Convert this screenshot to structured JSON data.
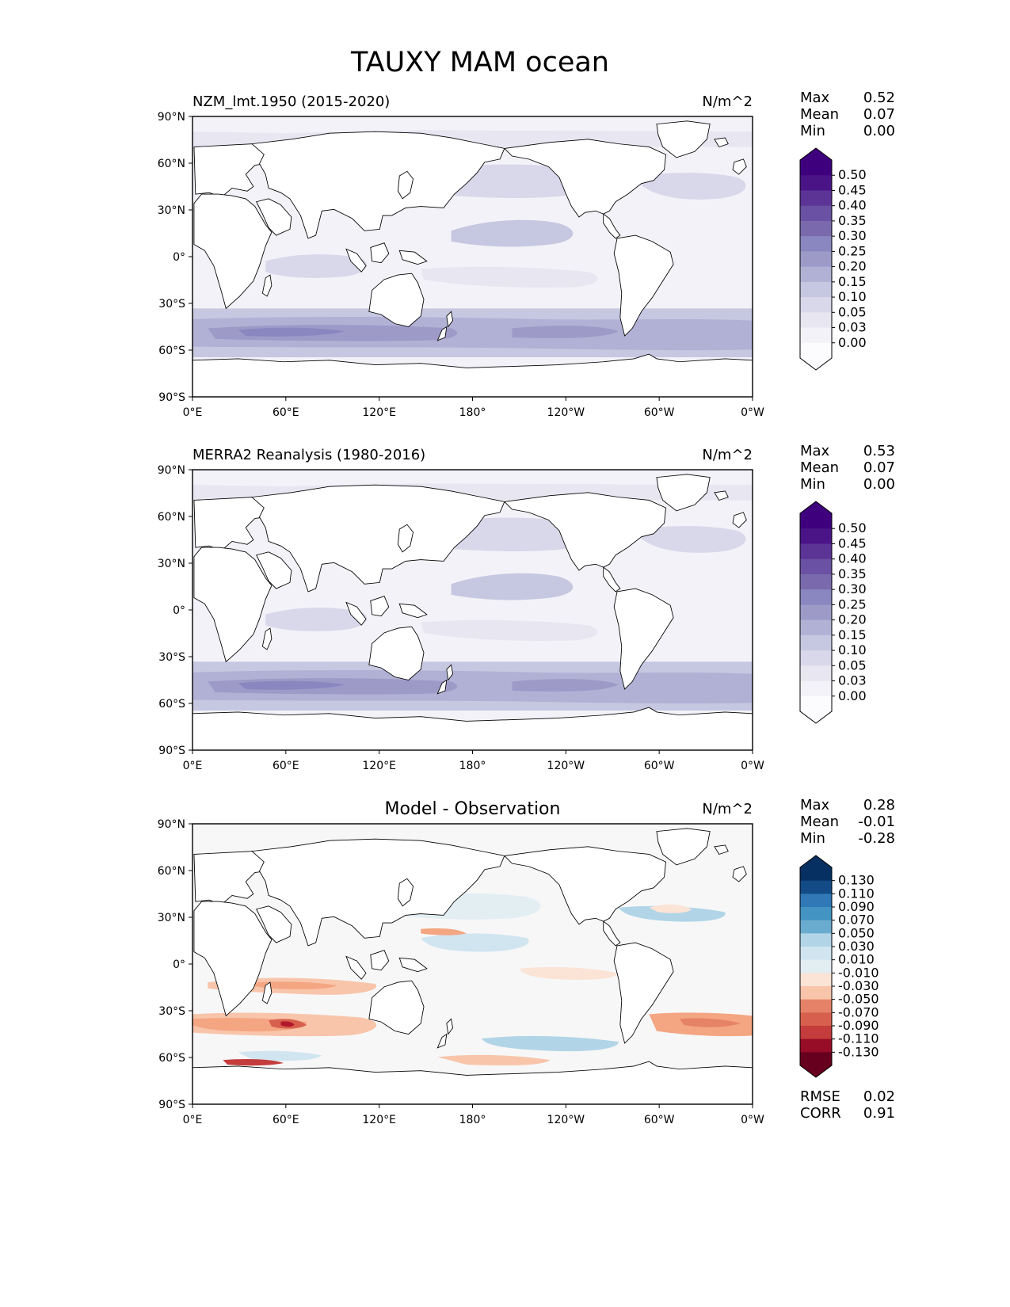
{
  "title": "TAUXY MAM ocean",
  "colors": {
    "land": "#ffffff",
    "coast": "#000000",
    "seq_cmap": [
      "#fcfbfd",
      "#f3f2f8",
      "#e7e6f1",
      "#d9d8ea",
      "#c6c7e1",
      "#b1b1d5",
      "#9e9ac8",
      "#8a86bf",
      "#7a6aad",
      "#6a51a3",
      "#5b3496",
      "#4a1486",
      "#3f007d"
    ],
    "div_cmap": [
      "#67001f",
      "#970c26",
      "#b2182b",
      "#c43c3c",
      "#d6604d",
      "#e58267",
      "#f4a582",
      "#f8c5ab",
      "#fbe3d6",
      "#f7f7f7",
      "#e3eef3",
      "#d1e5f0",
      "#b1d5e7",
      "#92c5de",
      "#6aaccf",
      "#4393c3",
      "#3079b6",
      "#2166ac",
      "#124b86",
      "#053061"
    ]
  },
  "panels": [
    {
      "id": "model",
      "label": "NZM_lmt.1950 (2015-2020)",
      "units": "N/m^2",
      "stats": [
        {
          "label": "Max",
          "value": "0.52"
        },
        {
          "label": "Mean",
          "value": "0.07"
        },
        {
          "label": "Min",
          "value": "0.00"
        }
      ],
      "colorbar": {
        "ticks": [
          "0.50",
          "0.45",
          "0.40",
          "0.35",
          "0.30",
          "0.25",
          "0.20",
          "0.15",
          "0.10",
          "0.05",
          "0.03",
          "0.00"
        ]
      }
    },
    {
      "id": "obs",
      "label": "MERRA2 Reanalysis (1980-2016)",
      "units": "N/m^2",
      "stats": [
        {
          "label": "Max",
          "value": "0.53"
        },
        {
          "label": "Mean",
          "value": "0.07"
        },
        {
          "label": "Min",
          "value": "0.00"
        }
      ],
      "colorbar": {
        "ticks": [
          "0.50",
          "0.45",
          "0.40",
          "0.35",
          "0.30",
          "0.25",
          "0.20",
          "0.15",
          "0.10",
          "0.05",
          "0.03",
          "0.00"
        ]
      }
    },
    {
      "id": "diff",
      "label": "Model - Observation",
      "units": "N/m^2",
      "stats": [
        {
          "label": "Max",
          "value": "0.28"
        },
        {
          "label": "Mean",
          "value": "-0.01"
        },
        {
          "label": "Min",
          "value": "-0.28"
        }
      ],
      "colorbar": {
        "ticks": [
          "0.130",
          "0.110",
          "0.090",
          "0.070",
          "0.050",
          "0.030",
          "0.010",
          "-0.010",
          "-0.030",
          "-0.050",
          "-0.070",
          "-0.090",
          "-0.110",
          "-0.130"
        ]
      },
      "metrics": [
        {
          "label": "RMSE",
          "value": "0.02"
        },
        {
          "label": "CORR",
          "value": "0.91"
        }
      ]
    }
  ],
  "chart_data": {
    "type": "heatmap",
    "title": "TAUXY MAM ocean",
    "variable": "TAUXY",
    "season": "MAM",
    "units": "N/m^2",
    "projection": "PlateCarree, central longitude 180",
    "x_ticks": [
      "0°E",
      "60°E",
      "120°E",
      "180°",
      "120°W",
      "60°W",
      "0°W"
    ],
    "y_ticks": [
      "90°N",
      "60°N",
      "30°N",
      "0°",
      "30°S",
      "60°S",
      "90°S"
    ],
    "xlim": [
      0,
      360
    ],
    "ylim": [
      -90,
      90
    ],
    "panels": [
      {
        "name": "NZM_lmt.1950 (2015-2020)",
        "levels": [
          0.0,
          0.03,
          0.05,
          0.1,
          0.15,
          0.2,
          0.25,
          0.3,
          0.35,
          0.4,
          0.45,
          0.5
        ],
        "max": 0.52,
        "mean": 0.07,
        "min": 0.0,
        "extend": "both"
      },
      {
        "name": "MERRA2 Reanalysis (1980-2016)",
        "levels": [
          0.0,
          0.03,
          0.05,
          0.1,
          0.15,
          0.2,
          0.25,
          0.3,
          0.35,
          0.4,
          0.45,
          0.5
        ],
        "max": 0.53,
        "mean": 0.07,
        "min": 0.0,
        "extend": "both"
      },
      {
        "name": "Model - Observation",
        "levels": [
          -0.13,
          -0.11,
          -0.09,
          -0.07,
          -0.05,
          -0.03,
          -0.01,
          0.01,
          0.03,
          0.05,
          0.07,
          0.09,
          0.11,
          0.13
        ],
        "max": 0.28,
        "mean": -0.01,
        "min": -0.28,
        "rmse": 0.02,
        "corr": 0.91,
        "extend": "both"
      }
    ]
  }
}
